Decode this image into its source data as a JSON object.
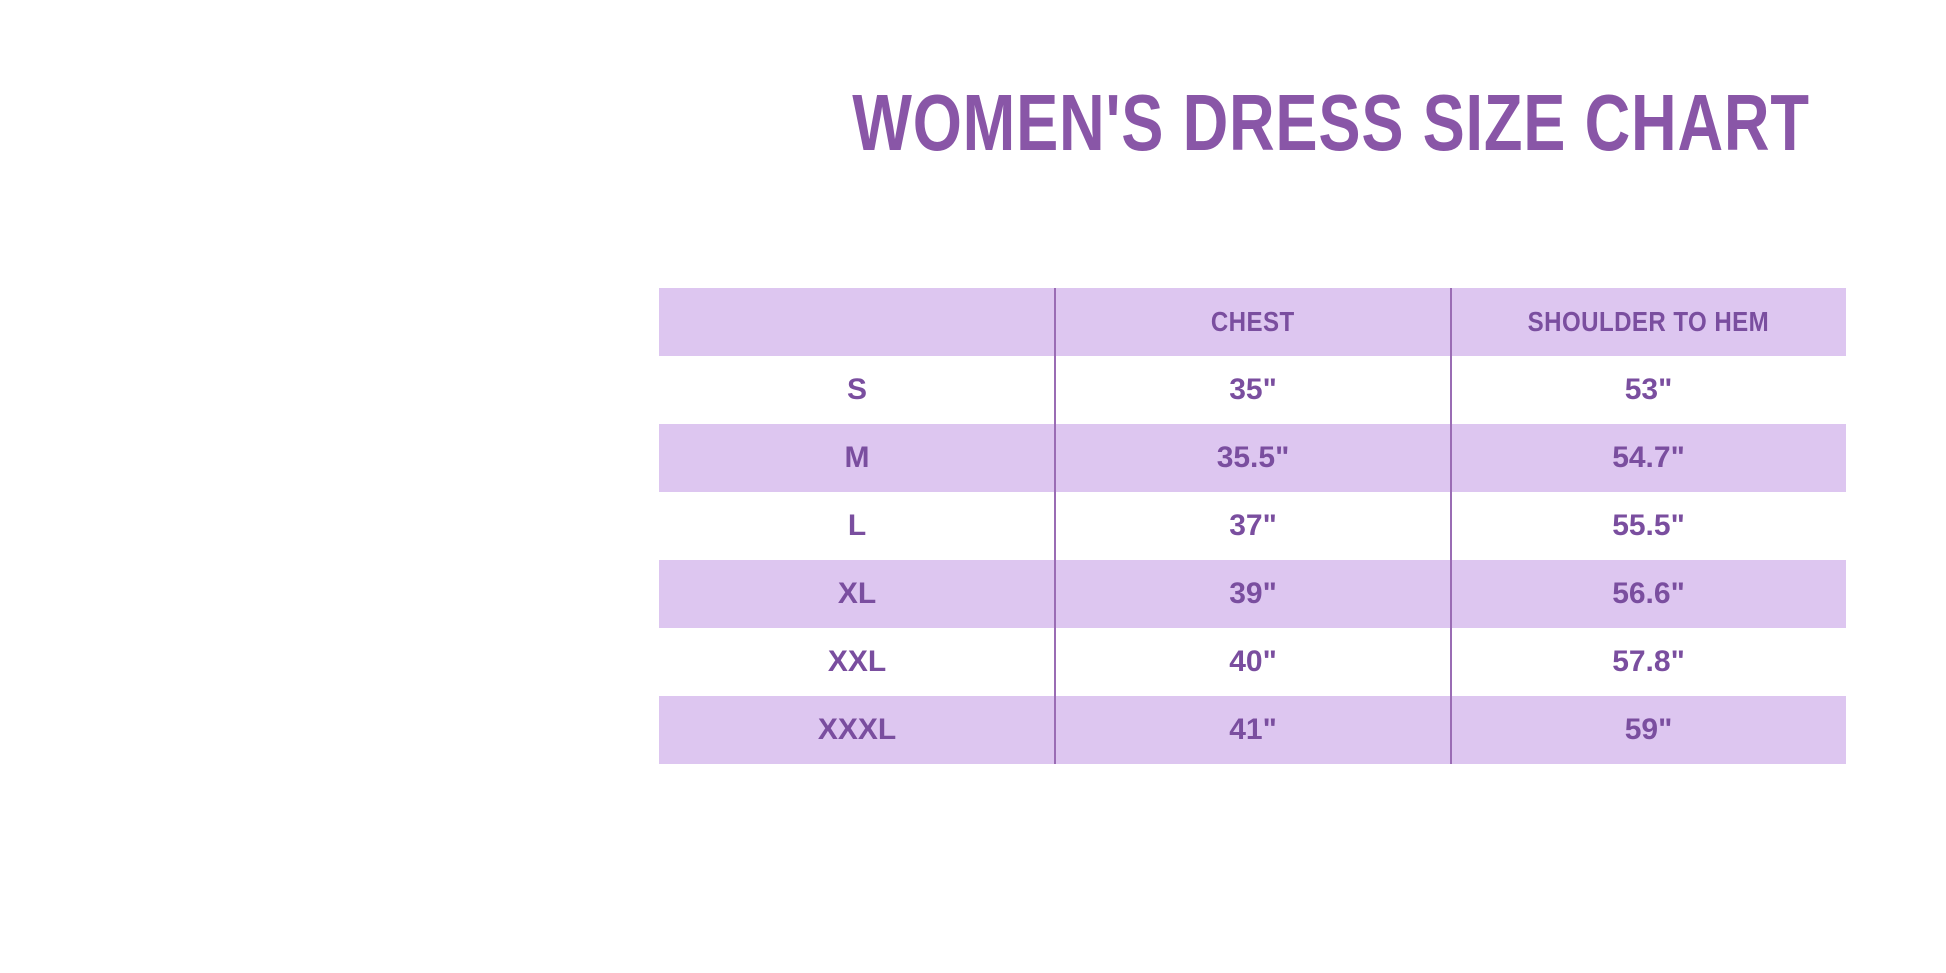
{
  "page": {
    "title": "WOMEN'S DRESS SIZE CHART"
  },
  "colors": {
    "title_purple": "#8956a7",
    "table_text_purple": "#7a4e9f",
    "row_lavender": "#ddc6f0",
    "divider_purple": "#9a6cb4",
    "background": "#ffffff"
  },
  "table": {
    "headers": {
      "size": "",
      "chest": "CHEST",
      "shoulder_to_hem": "SHOULDER TO HEM"
    },
    "rows": [
      {
        "size": "S",
        "chest": "35\"",
        "shoulder_to_hem": "53\""
      },
      {
        "size": "M",
        "chest": "35.5\"",
        "shoulder_to_hem": "54.7\""
      },
      {
        "size": "L",
        "chest": "37\"",
        "shoulder_to_hem": "55.5\""
      },
      {
        "size": "XL",
        "chest": "39\"",
        "shoulder_to_hem": "56.6\""
      },
      {
        "size": "XXL",
        "chest": "40\"",
        "shoulder_to_hem": "57.8\""
      },
      {
        "size": "XXXL",
        "chest": "41\"",
        "shoulder_to_hem": "59\""
      }
    ]
  },
  "chart_data": {
    "type": "table",
    "title": "WOMEN'S DRESS SIZE CHART",
    "columns": [
      "",
      "CHEST",
      "SHOULDER TO HEM"
    ],
    "rows": [
      [
        "S",
        "35\"",
        "53\""
      ],
      [
        "M",
        "35.5\"",
        "54.7\""
      ],
      [
        "L",
        "37\"",
        "55.5\""
      ],
      [
        "XL",
        "39\"",
        "56.6\""
      ],
      [
        "XXL",
        "40\"",
        "57.8\""
      ],
      [
        "XXXL",
        "41\"",
        "59\""
      ]
    ],
    "layout_hints": {
      "header_row_background": "#ddc6f0",
      "alternating_row_backgrounds": [
        "#ffffff",
        "#ddc6f0"
      ],
      "column_dividers": true,
      "outer_border": false
    }
  }
}
